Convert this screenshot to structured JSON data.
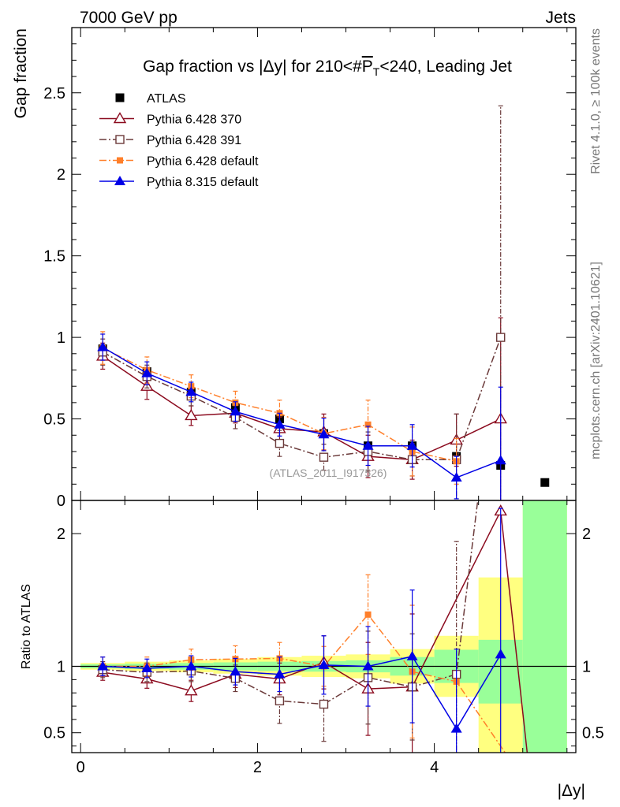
{
  "header": {
    "left_label": "7000 GeV pp",
    "right_label": "Jets",
    "side_label_top": "Rivet 4.1.0, ≥ 100k events",
    "side_label_bottom": "mcplots.cern.ch [arXiv:2401.10621]",
    "watermark": "(ATLAS_2011_I917526)"
  },
  "colors": {
    "data": "#000000",
    "p370": "#8b0a1e",
    "p391": "#6b3a3a",
    "p6def": "#ff7f2a",
    "p8def": "#0000e6",
    "band_inner": "#99ff99",
    "band_outer": "#ffff80"
  },
  "chart_data": [
    {
      "type": "scatter",
      "panel": "main",
      "title": "Gap fraction vs |Δy| for 210<#P̅T<240, Leading Jet",
      "title_prefix": "Gap fraction vs |Δy| for 210<#",
      "title_p": "P",
      "title_sub": "T",
      "title_suffix": "<240, Leading Jet",
      "ylabel": "Gap fraction",
      "xlim": [
        -0.1,
        5.6
      ],
      "ylim": [
        0,
        2.9
      ],
      "yticks": [
        0,
        0.5,
        1,
        1.5,
        2,
        2.5
      ],
      "ytick_labels": [
        "0",
        "0.5",
        "1",
        "1.5",
        "2",
        "2.5"
      ],
      "series": [
        {
          "key": "atlas",
          "name": "ATLAS",
          "marker": "square-filled",
          "line": "none",
          "x": [
            0.25,
            0.75,
            1.25,
            1.75,
            2.25,
            2.75,
            3.25,
            3.75,
            4.25,
            4.75,
            5.25
          ],
          "y": [
            0.93,
            0.79,
            0.665,
            0.57,
            0.5,
            0.41,
            0.335,
            0.335,
            0.27,
            0.215,
            0.11
          ],
          "err": [
            0,
            0,
            0,
            0,
            0,
            0,
            0,
            0,
            0,
            0,
            0
          ]
        },
        {
          "key": "p370",
          "name": "Pythia 6.428 370",
          "marker": "triangle-open",
          "line": "solid",
          "x": [
            0.25,
            0.75,
            1.25,
            1.75,
            2.25,
            2.75,
            3.25,
            3.75,
            4.25,
            4.75
          ],
          "y": [
            0.885,
            0.7,
            0.52,
            0.535,
            0.44,
            0.42,
            0.27,
            0.25,
            0.37,
            0.5
          ],
          "err": [
            0.08,
            0.08,
            0.06,
            0.06,
            0.07,
            0.11,
            0.13,
            0.12,
            0.16,
            0.62
          ]
        },
        {
          "key": "p391",
          "name": "Pythia 6.428 391",
          "marker": "square-open",
          "line": "dashdot",
          "x": [
            0.25,
            0.75,
            1.25,
            1.75,
            2.25,
            2.75,
            3.25,
            3.75,
            4.25,
            4.75
          ],
          "y": [
            0.91,
            0.76,
            0.64,
            0.51,
            0.35,
            0.265,
            0.3,
            0.25,
            0.25,
            1.0
          ],
          "err": [
            0.08,
            0.07,
            0.06,
            0.07,
            0.08,
            0.08,
            0.12,
            0.1,
            0.28,
            1.42
          ]
        },
        {
          "key": "p6def",
          "name": "Pythia 6.428 default",
          "marker": "square-filled-small",
          "line": "dashdot",
          "x": [
            0.25,
            0.75,
            1.25,
            1.75,
            2.25,
            2.75,
            3.25,
            3.75,
            4.25
          ],
          "y": [
            0.935,
            0.8,
            0.7,
            0.6,
            0.535,
            0.41,
            0.465,
            0.3,
            0.24
          ],
          "err": [
            0.1,
            0.08,
            0.07,
            0.07,
            0.08,
            0.1,
            0.15,
            0.15,
            0.14
          ]
        },
        {
          "key": "p8def",
          "name": "Pythia 8.315 default",
          "marker": "triangle-filled",
          "line": "solid",
          "x": [
            0.25,
            0.75,
            1.25,
            1.75,
            2.25,
            2.75,
            3.25,
            3.75,
            4.25,
            4.75
          ],
          "y": [
            0.94,
            0.78,
            0.665,
            0.545,
            0.465,
            0.405,
            0.335,
            0.335,
            0.14,
            0.245
          ],
          "err": [
            0.08,
            0.07,
            0.06,
            0.06,
            0.07,
            0.1,
            0.12,
            0.13,
            0.13,
            0.45
          ]
        }
      ]
    },
    {
      "type": "scatter",
      "panel": "ratio",
      "ylabel": "Ratio to ATLAS",
      "xlabel": "|Δy|",
      "xlim": [
        -0.1,
        5.6
      ],
      "ylim": [
        0.35,
        2.25
      ],
      "xticks": [
        0,
        2,
        4
      ],
      "xtick_labels": [
        "0",
        "2",
        "4"
      ],
      "yticks": [
        0.5,
        1,
        2
      ],
      "ytick_labels": [
        "0.5",
        "1",
        "2"
      ],
      "bands": {
        "x_edges": [
          0,
          0.5,
          1,
          1.5,
          2,
          2.5,
          3,
          3.5,
          4,
          4.5,
          5,
          5.5
        ],
        "inner_lo": [
          0.985,
          0.98,
          0.975,
          0.97,
          0.965,
          0.96,
          0.955,
          0.93,
          0.875,
          0.72,
          0.35
        ],
        "inner_hi": [
          1.015,
          1.02,
          1.025,
          1.03,
          1.035,
          1.04,
          1.045,
          1.07,
          1.125,
          1.2,
          2.25
        ],
        "outer_lo": [
          0.975,
          0.965,
          0.955,
          0.945,
          0.93,
          0.92,
          0.91,
          0.87,
          0.77,
          0.35,
          0.35
        ],
        "outer_hi": [
          1.025,
          1.035,
          1.045,
          1.055,
          1.07,
          1.08,
          1.09,
          1.13,
          1.23,
          1.67,
          2.25
        ]
      },
      "series": [
        {
          "key": "p370",
          "name": "Pythia 6.428 370",
          "x": [
            0.25,
            0.75,
            1.25,
            1.75,
            2.25,
            2.75,
            3.25,
            3.75,
            4.75,
            5.05
          ],
          "y": [
            0.955,
            0.905,
            0.815,
            0.94,
            0.905,
            1.03,
            0.83,
            0.845,
            2.17,
            0.35
          ],
          "err": [
            0.06,
            0.07,
            0.08,
            0.1,
            0.12,
            0.2,
            0.35,
            0.55,
            0,
            0
          ]
        },
        {
          "key": "p391",
          "name": "Pythia 6.428 391",
          "x": [
            0.25,
            0.75,
            1.25,
            1.75,
            2.25,
            2.75,
            3.25,
            3.75,
            4.25,
            4.5,
            4.95
          ],
          "y": [
            0.975,
            0.955,
            0.965,
            0.91,
            0.74,
            0.715,
            0.915,
            0.845,
            0.94,
            2.3,
            2.3
          ],
          "err": [
            0.06,
            0.07,
            0.08,
            0.1,
            0.17,
            0.28,
            0.35,
            0.4,
            1.0,
            0,
            0
          ]
        },
        {
          "key": "p6def",
          "name": "Pythia 6.428 default",
          "x": [
            0.25,
            0.75,
            1.25,
            1.75,
            2.25,
            2.75,
            3.25,
            3.75,
            4.25,
            4.8
          ],
          "y": [
            1.0,
            1.0,
            1.05,
            1.055,
            1.06,
            1.0,
            1.39,
            0.96,
            0.885,
            0.35
          ],
          "err": [
            0.07,
            0.07,
            0.08,
            0.1,
            0.12,
            0.15,
            0.3,
            0.5,
            0,
            0
          ]
        },
        {
          "key": "p8def",
          "name": "Pythia 8.315 default",
          "x": [
            0.25,
            0.75,
            1.25,
            1.75,
            2.25,
            2.75,
            3.25,
            3.75,
            4.25,
            4.75
          ],
          "y": [
            1.0,
            0.985,
            1.0,
            0.96,
            0.94,
            1.01,
            1.0,
            1.075,
            0.53,
            1.09
          ],
          "err": [
            0.07,
            0.07,
            0.08,
            0.1,
            0.13,
            0.22,
            0.3,
            0.5,
            0.6,
            1.1
          ]
        }
      ]
    }
  ]
}
